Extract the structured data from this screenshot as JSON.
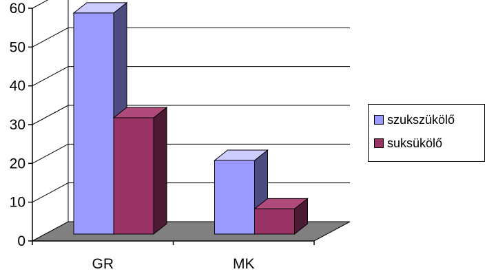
{
  "chart_data": {
    "type": "bar",
    "style": "3d-clustered",
    "categories": [
      "GR",
      "MK"
    ],
    "series": [
      {
        "name": "szukszükölő",
        "values": [
          57,
          19
        ],
        "color": "#9999ff",
        "top_color": "#ccccff",
        "side_color": "#4c4c80"
      },
      {
        "name": "suksükölő",
        "values": [
          30,
          6.5
        ],
        "color": "#993366",
        "top_color": "#b04a7a",
        "side_color": "#4d1a33"
      }
    ],
    "y_ticks": [
      0,
      10,
      20,
      30,
      40,
      50,
      60
    ],
    "ylim": [
      0,
      60
    ],
    "grid": true,
    "floor_color": "#808080",
    "legend_position": "right"
  }
}
